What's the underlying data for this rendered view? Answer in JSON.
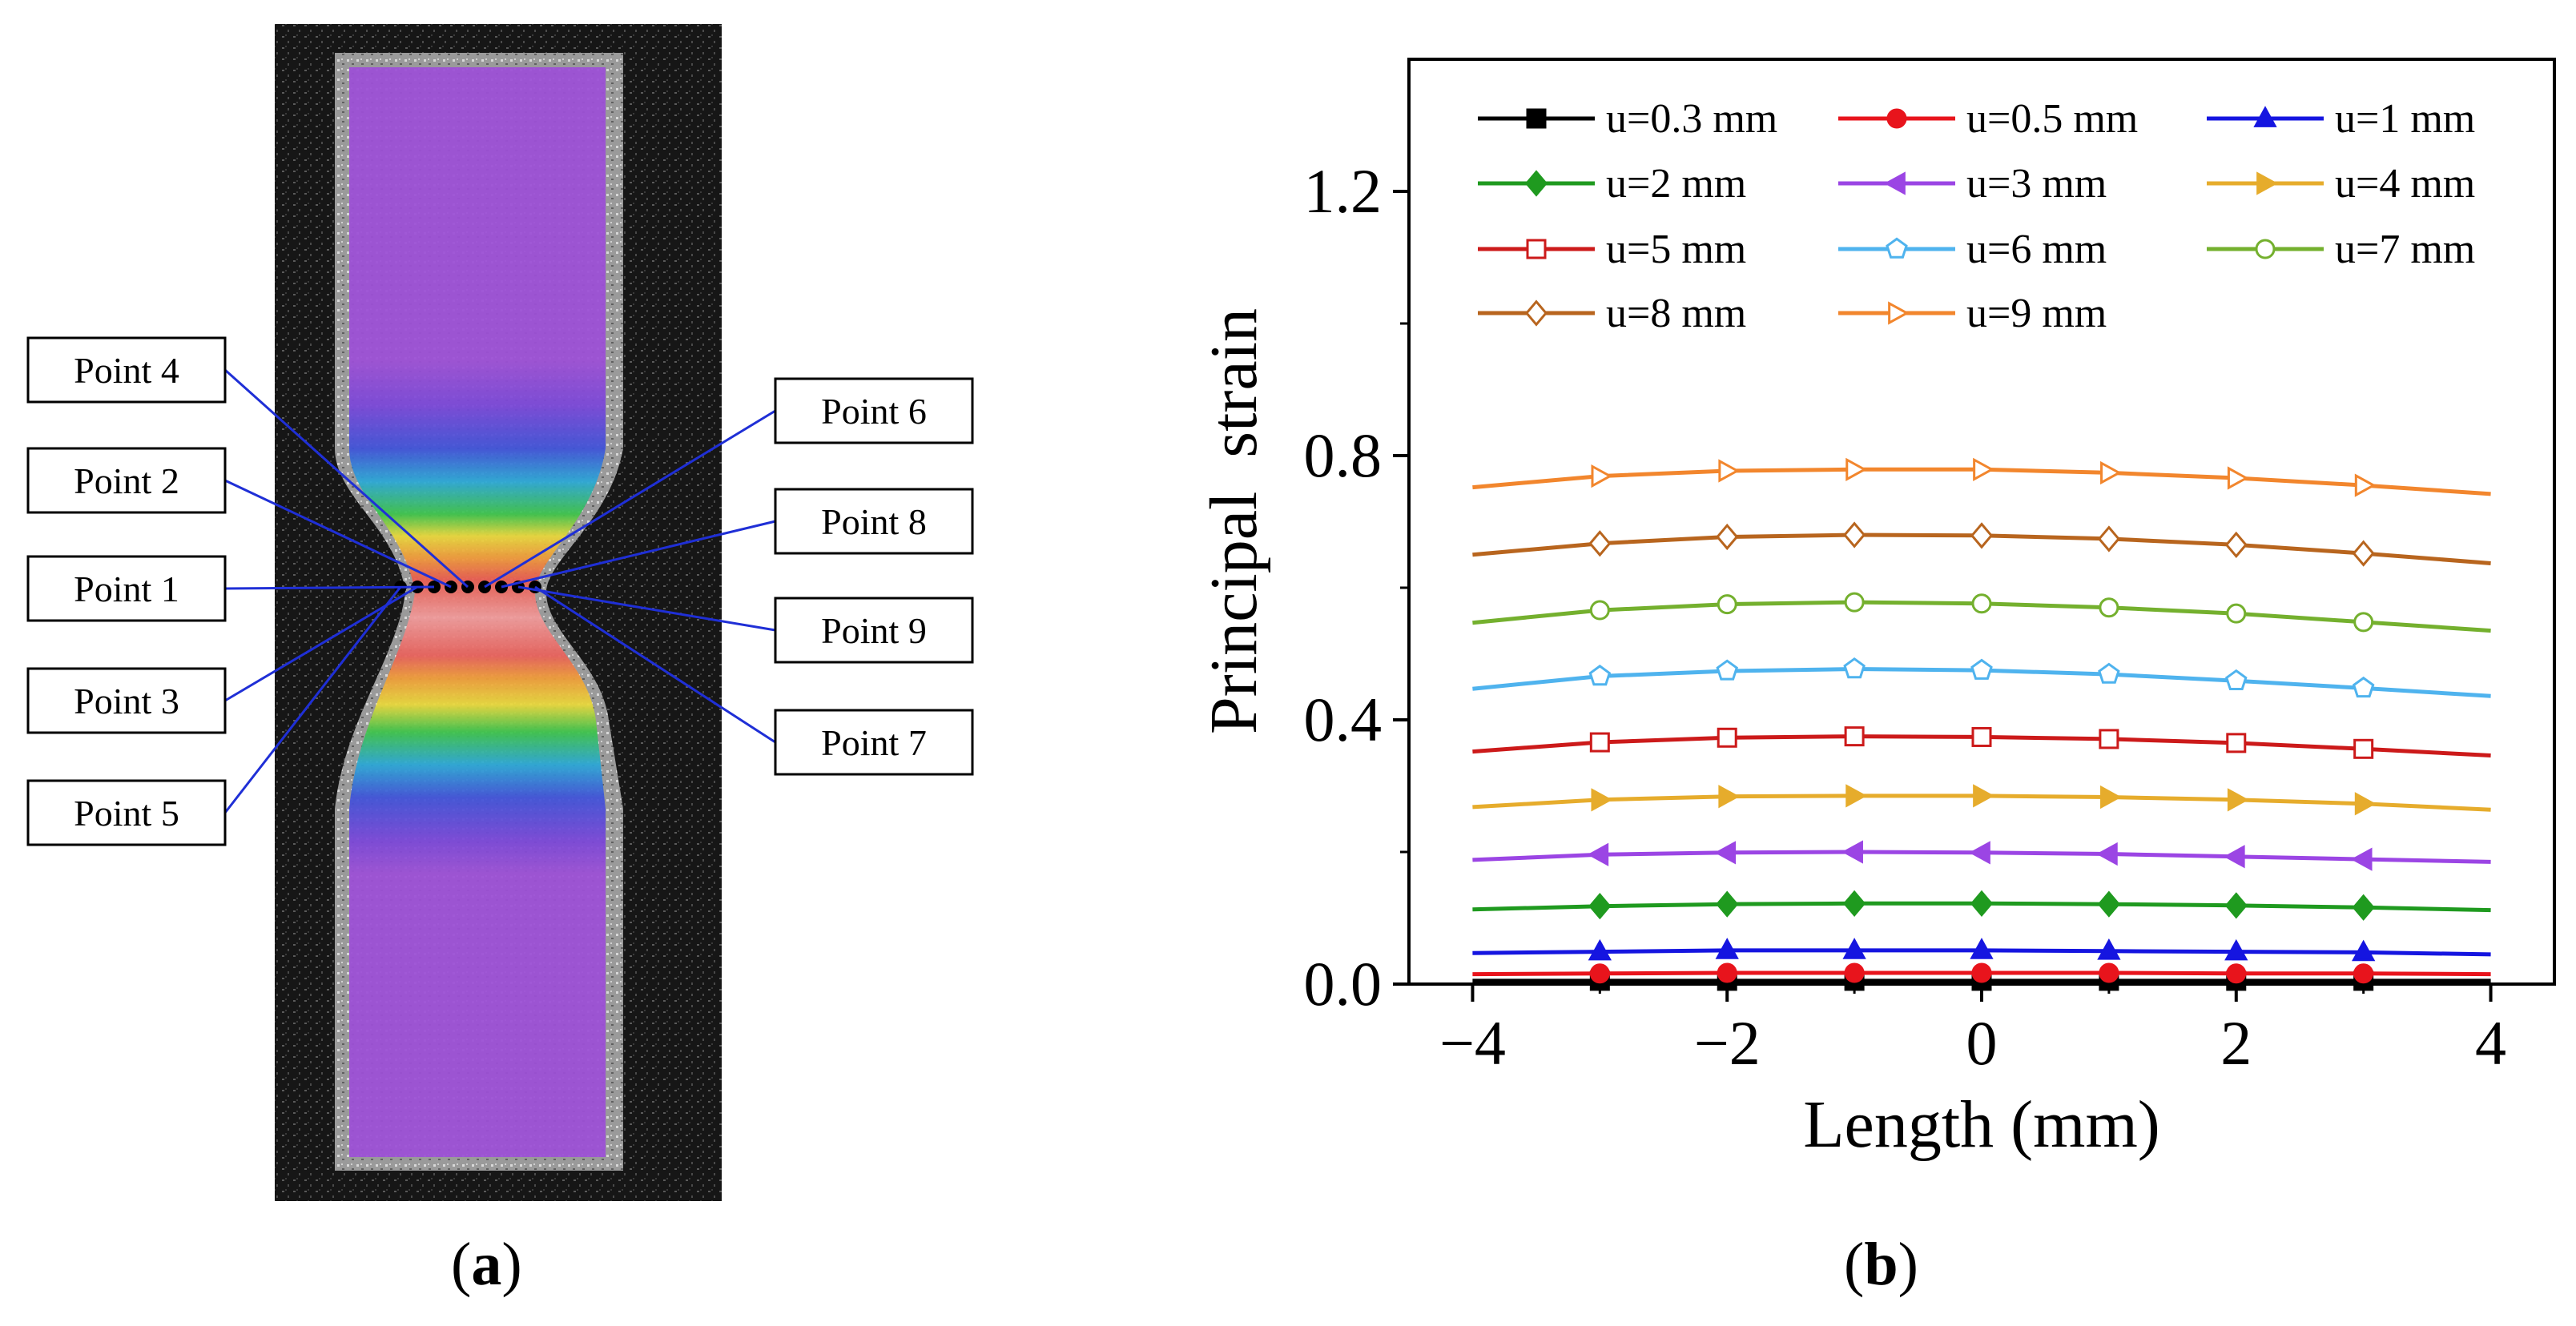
{
  "panel_a": {
    "points": [
      {
        "label": "Point 4",
        "side": "left"
      },
      {
        "label": "Point 2",
        "side": "left"
      },
      {
        "label": "Point 1",
        "side": "left"
      },
      {
        "label": "Point 3",
        "side": "left"
      },
      {
        "label": "Point 5",
        "side": "left"
      },
      {
        "label": "Point 6",
        "side": "right"
      },
      {
        "label": "Point 8",
        "side": "right"
      },
      {
        "label": "Point 9",
        "side": "right"
      },
      {
        "label": "Point 7",
        "side": "right"
      }
    ],
    "caption_letter": "a"
  },
  "panel_b": {
    "caption_letter": "b"
  },
  "colors": {
    "line_link": "#1f2fd6",
    "series": [
      "#000000",
      "#e8141c",
      "#1515e0",
      "#1f9a1f",
      "#9b45e4",
      "#e6ac2c",
      "#cc1a1a",
      "#4fb3ee",
      "#74b02e",
      "#b8651e",
      "#f2862d"
    ]
  },
  "chart_data": {
    "type": "line",
    "title": "",
    "xlabel": "Length (mm)",
    "ylabel": "Principal  strain",
    "xlim": [
      -4.5,
      4.5
    ],
    "ylim": [
      0,
      1.4
    ],
    "xticks": [
      -4,
      -2,
      0,
      2,
      4
    ],
    "xtick_labels": [
      "−4",
      "−2",
      "0",
      "2",
      "4"
    ],
    "yticks": [
      0.0,
      0.4,
      0.8,
      1.2
    ],
    "ytick_labels": [
      "0.0",
      "0.4",
      "0.8",
      "1.2"
    ],
    "x": [
      -4,
      -3,
      -2,
      -1,
      0,
      1,
      2,
      3,
      4
    ],
    "marker_x": [
      -3,
      -2,
      -1,
      0,
      1,
      2,
      3
    ],
    "legend_position": "top",
    "series": [
      {
        "name": "u=0.3 mm",
        "marker": "square-filled",
        "values": [
          0.005,
          0.005,
          0.005,
          0.005,
          0.005,
          0.005,
          0.005,
          0.005,
          0.005
        ]
      },
      {
        "name": "u=0.5 mm",
        "marker": "circle-filled",
        "values": [
          0.015,
          0.016,
          0.017,
          0.017,
          0.017,
          0.017,
          0.016,
          0.016,
          0.015
        ]
      },
      {
        "name": "u=1 mm",
        "marker": "triangle-up-filled",
        "values": [
          0.047,
          0.049,
          0.051,
          0.051,
          0.051,
          0.05,
          0.049,
          0.048,
          0.045
        ]
      },
      {
        "name": "u=2 mm",
        "marker": "diamond-filled",
        "values": [
          0.113,
          0.118,
          0.121,
          0.122,
          0.122,
          0.121,
          0.119,
          0.116,
          0.112
        ]
      },
      {
        "name": "u=3 mm",
        "marker": "triangle-left-filled",
        "values": [
          0.188,
          0.196,
          0.199,
          0.2,
          0.199,
          0.197,
          0.193,
          0.189,
          0.185
        ]
      },
      {
        "name": "u=4 mm",
        "marker": "triangle-right-filled",
        "values": [
          0.268,
          0.279,
          0.284,
          0.285,
          0.285,
          0.283,
          0.279,
          0.273,
          0.264
        ]
      },
      {
        "name": "u=5 mm",
        "marker": "square-open",
        "values": [
          0.352,
          0.366,
          0.373,
          0.375,
          0.374,
          0.371,
          0.365,
          0.356,
          0.346
        ]
      },
      {
        "name": "u=6 mm",
        "marker": "pentagon-open",
        "values": [
          0.447,
          0.466,
          0.474,
          0.477,
          0.475,
          0.469,
          0.459,
          0.448,
          0.436
        ]
      },
      {
        "name": "u=7 mm",
        "marker": "circle-open",
        "values": [
          0.547,
          0.566,
          0.575,
          0.578,
          0.576,
          0.57,
          0.561,
          0.548,
          0.535
        ]
      },
      {
        "name": "u=8 mm",
        "marker": "diamond-open",
        "values": [
          0.65,
          0.667,
          0.677,
          0.68,
          0.679,
          0.674,
          0.665,
          0.652,
          0.637
        ]
      },
      {
        "name": "u=9 mm",
        "marker": "triangle-right-open",
        "values": [
          0.752,
          0.769,
          0.777,
          0.779,
          0.779,
          0.774,
          0.766,
          0.755,
          0.742
        ]
      }
    ]
  }
}
